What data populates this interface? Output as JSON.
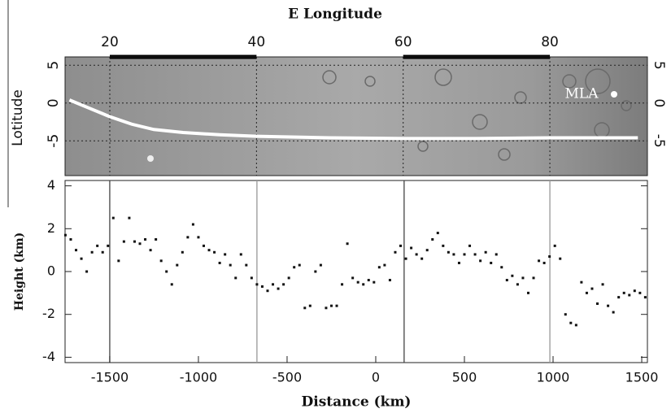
{
  "chart_data": [
    {
      "type": "line",
      "xlabel": "E Longitude",
      "ylabel": "Lotitude",
      "annotation": "MLA",
      "xlim": [
        13.9,
        93.3
      ],
      "ylim": [
        -9.6,
        6.1
      ],
      "xticks": [
        20,
        40,
        60,
        80
      ],
      "yticks": [
        5,
        0,
        -5
      ],
      "grid": true,
      "series": [
        {
          "color": "#ffffff",
          "x": [
            14.5,
            17,
            20,
            23,
            26,
            30,
            35,
            40,
            50,
            60,
            70,
            80,
            92
          ],
          "values": [
            0.4,
            -0.6,
            -1.8,
            -2.8,
            -3.5,
            -3.9,
            -4.2,
            -4.4,
            -4.6,
            -4.7,
            -4.7,
            -4.6,
            -4.6
          ]
        }
      ]
    },
    {
      "type": "scatter",
      "xlabel": "Distance (km)",
      "ylabel": "Height (km)",
      "color": "#111111",
      "xlim": [
        -1752,
        1532
      ],
      "ylim": [
        -4.25,
        4.25
      ],
      "xticks": [
        -1500,
        -1000,
        -500,
        0,
        500,
        1000,
        1500
      ],
      "yticks": [
        -4,
        -2,
        0,
        2,
        4
      ],
      "vlines": [
        -1500,
        -670,
        160,
        982
      ],
      "x": [
        -1750,
        -1720,
        -1690,
        -1660,
        -1630,
        -1600,
        -1570,
        -1540,
        -1510,
        -1480,
        -1450,
        -1420,
        -1390,
        -1360,
        -1330,
        -1300,
        -1270,
        -1240,
        -1210,
        -1180,
        -1150,
        -1120,
        -1090,
        -1060,
        -1030,
        -1000,
        -970,
        -940,
        -910,
        -880,
        -850,
        -820,
        -790,
        -760,
        -730,
        -700,
        -670,
        -640,
        -610,
        -580,
        -550,
        -520,
        -490,
        -460,
        -430,
        -400,
        -370,
        -340,
        -310,
        -280,
        -250,
        -220,
        -190,
        -160,
        -130,
        -100,
        -70,
        -40,
        -10,
        20,
        50,
        80,
        110,
        140,
        170,
        200,
        230,
        260,
        290,
        320,
        350,
        380,
        410,
        440,
        470,
        500,
        530,
        560,
        590,
        620,
        650,
        680,
        710,
        740,
        770,
        800,
        830,
        860,
        890,
        920,
        950,
        980,
        1010,
        1040,
        1070,
        1100,
        1130,
        1160,
        1190,
        1220,
        1250,
        1280,
        1310,
        1340,
        1370,
        1400,
        1430,
        1460,
        1490,
        1520
      ],
      "values": [
        1.7,
        1.5,
        1.0,
        0.6,
        0.0,
        0.9,
        1.2,
        0.9,
        1.2,
        2.5,
        0.5,
        1.4,
        2.5,
        1.4,
        1.3,
        1.5,
        1.0,
        1.5,
        0.5,
        0.0,
        -0.6,
        0.3,
        0.9,
        1.6,
        2.2,
        1.6,
        1.2,
        1.0,
        0.9,
        0.4,
        0.8,
        0.3,
        -0.3,
        0.8,
        0.3,
        -0.3,
        -0.6,
        -0.7,
        -0.9,
        -0.6,
        -0.8,
        -0.6,
        -0.3,
        0.2,
        0.3,
        -1.7,
        -1.6,
        0.0,
        0.3,
        -1.7,
        -1.6,
        -1.6,
        -0.6,
        1.3,
        -0.3,
        -0.5,
        -0.6,
        -0.4,
        -0.5,
        0.2,
        0.3,
        -0.4,
        0.9,
        1.2,
        0.6,
        1.1,
        0.8,
        0.6,
        1.0,
        1.5,
        1.8,
        1.2,
        0.9,
        0.8,
        0.4,
        0.8,
        1.2,
        0.8,
        0.5,
        0.9,
        0.4,
        0.8,
        0.2,
        -0.4,
        -0.2,
        -0.6,
        -0.3,
        -1.0,
        -0.3,
        0.5,
        0.4,
        0.7,
        1.2,
        0.6,
        -2.0,
        -2.4,
        -2.5,
        -0.5,
        -1.0,
        -0.8,
        -1.5,
        -0.6,
        -1.6,
        -1.9,
        -1.2,
        -1.0,
        -1.1,
        -0.9,
        -1.0,
        -1.2
      ]
    }
  ]
}
